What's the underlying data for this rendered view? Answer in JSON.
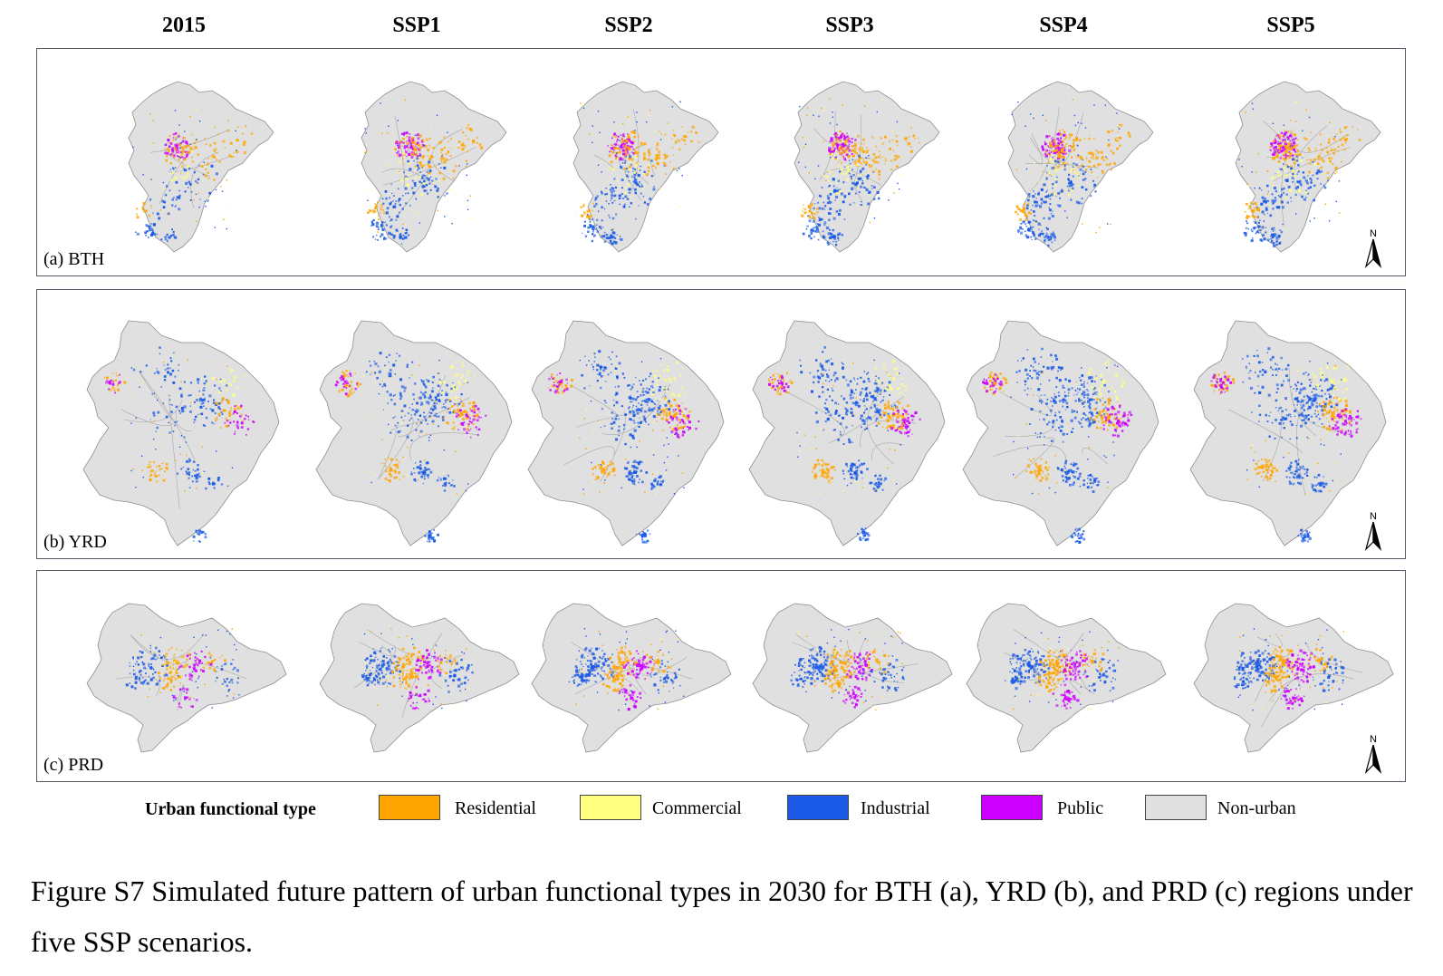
{
  "columns": [
    "2015",
    "SSP1",
    "SSP2",
    "SSP3",
    "SSP4",
    "SSP5"
  ],
  "panels": [
    {
      "id": "bth",
      "label": "(a) BTH"
    },
    {
      "id": "yrd",
      "label": "(b) YRD"
    },
    {
      "id": "prd",
      "label": "(c) PRD"
    }
  ],
  "north_label": "N",
  "legend": {
    "title": "Urban functional type",
    "items": [
      {
        "label": "Residential",
        "color": "#FFA500"
      },
      {
        "label": "Commercial",
        "color": "#FFFF80"
      },
      {
        "label": "Industrial",
        "color": "#1A5AE6"
      },
      {
        "label": "Public",
        "color": "#CC00FF"
      },
      {
        "label": "Non-urban",
        "color": "#E0E0E0"
      }
    ]
  },
  "caption": "Figure S7 Simulated future pattern of urban functional types in 2030 for BTH (a), YRD (b), and PRD (c) regions under five SSP scenarios."
}
